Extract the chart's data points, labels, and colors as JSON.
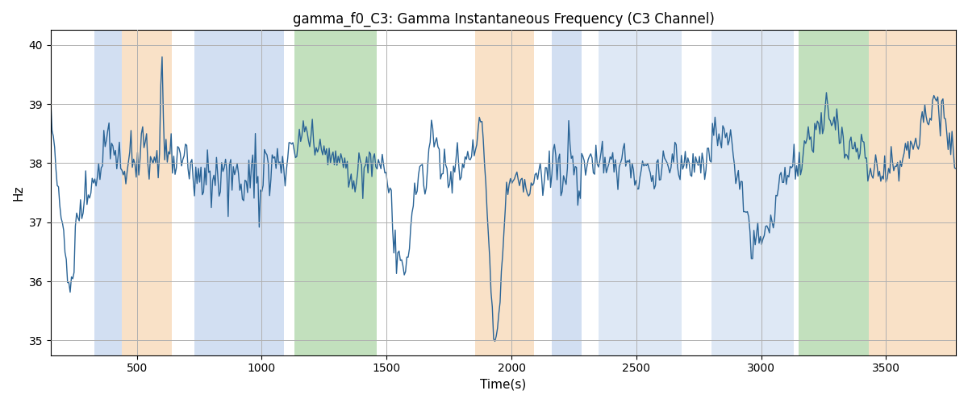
{
  "title": "gamma_f0_C3: Gamma Instantaneous Frequency (C3 Channel)",
  "xlabel": "Time(s)",
  "ylabel": "Hz",
  "ylim": [
    34.75,
    40.25
  ],
  "xlim": [
    155,
    3780
  ],
  "yticks": [
    35,
    36,
    37,
    38,
    39,
    40
  ],
  "xticks": [
    500,
    1000,
    1500,
    2000,
    2500,
    3000,
    3500
  ],
  "line_color": "#2a6496",
  "line_width": 1.0,
  "bg_color": "#ffffff",
  "grid_color": "#b0b0b0",
  "bands": [
    {
      "xmin": 330,
      "xmax": 440,
      "color": "#aec6e8",
      "alpha": 0.55
    },
    {
      "xmin": 440,
      "xmax": 640,
      "color": "#f5c99a",
      "alpha": 0.55
    },
    {
      "xmin": 730,
      "xmax": 1090,
      "color": "#aec6e8",
      "alpha": 0.55
    },
    {
      "xmin": 1130,
      "xmax": 1460,
      "color": "#90c888",
      "alpha": 0.55
    },
    {
      "xmin": 1855,
      "xmax": 2090,
      "color": "#f5c99a",
      "alpha": 0.55
    },
    {
      "xmin": 2160,
      "xmax": 2280,
      "color": "#aec6e8",
      "alpha": 0.55
    },
    {
      "xmin": 2350,
      "xmax": 2680,
      "color": "#aec6e8",
      "alpha": 0.4
    },
    {
      "xmin": 2800,
      "xmax": 3130,
      "color": "#aec6e8",
      "alpha": 0.4
    },
    {
      "xmin": 3150,
      "xmax": 3430,
      "color": "#90c888",
      "alpha": 0.55
    },
    {
      "xmin": 3430,
      "xmax": 3780,
      "color": "#f5c99a",
      "alpha": 0.55
    }
  ],
  "seed": 17,
  "n_points": 700,
  "t_start": 155,
  "t_end": 3780,
  "base_freq": 38.0,
  "figsize": [
    12,
    5
  ],
  "dpi": 100
}
